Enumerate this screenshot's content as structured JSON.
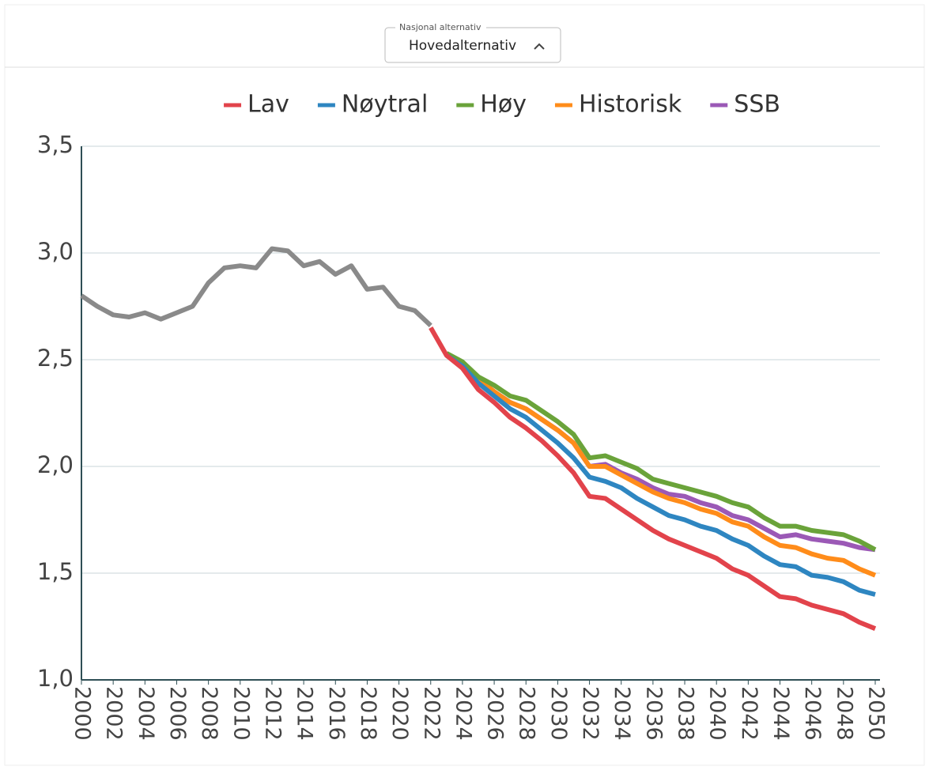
{
  "ui": {
    "dropdown_label": "Nasjonal alternativ",
    "dropdown_value": "Hovedalternativ"
  },
  "chart_data": {
    "type": "line",
    "x": [
      2000,
      2001,
      2002,
      2003,
      2004,
      2005,
      2006,
      2007,
      2008,
      2009,
      2010,
      2011,
      2012,
      2013,
      2014,
      2015,
      2016,
      2017,
      2018,
      2019,
      2020,
      2021,
      2022,
      2023,
      2024,
      2025,
      2026,
      2027,
      2028,
      2029,
      2030,
      2031,
      2032,
      2033,
      2034,
      2035,
      2036,
      2037,
      2038,
      2039,
      2040,
      2041,
      2042,
      2043,
      2044,
      2045,
      2046,
      2047,
      2048,
      2049,
      2050
    ],
    "series": [
      {
        "color": "#8a8a8a",
        "values": [
          2.8,
          2.75,
          2.71,
          2.7,
          2.72,
          2.69,
          2.72,
          2.75,
          2.86,
          2.93,
          2.94,
          2.93,
          3.02,
          3.01,
          2.94,
          2.96,
          2.9,
          2.94,
          2.83,
          2.84,
          2.75,
          2.73,
          2.66,
          null,
          null,
          null,
          null,
          null,
          null,
          null,
          null,
          null,
          null,
          null,
          null,
          null,
          null,
          null,
          null,
          null,
          null,
          null,
          null,
          null,
          null,
          null,
          null,
          null,
          null,
          null,
          null
        ]
      },
      {
        "name": "Lav",
        "color": "#e2434b",
        "values": [
          null,
          null,
          null,
          null,
          null,
          null,
          null,
          null,
          null,
          null,
          null,
          null,
          null,
          null,
          null,
          null,
          null,
          null,
          null,
          null,
          null,
          null,
          2.65,
          2.52,
          2.46,
          2.36,
          2.3,
          2.23,
          2.18,
          2.12,
          2.05,
          1.97,
          1.86,
          1.85,
          1.8,
          1.75,
          1.7,
          1.66,
          1.63,
          1.6,
          1.57,
          1.52,
          1.49,
          1.44,
          1.39,
          1.38,
          1.35,
          1.33,
          1.31,
          1.27,
          1.24
        ]
      },
      {
        "name": "Nøytral",
        "color": "#2e86c1",
        "values": [
          null,
          null,
          null,
          null,
          null,
          null,
          null,
          null,
          null,
          null,
          null,
          null,
          null,
          null,
          null,
          null,
          null,
          null,
          null,
          null,
          null,
          null,
          null,
          2.52,
          2.47,
          2.39,
          2.33,
          2.27,
          2.23,
          2.17,
          2.11,
          2.04,
          1.95,
          1.93,
          1.9,
          1.85,
          1.81,
          1.77,
          1.75,
          1.72,
          1.7,
          1.66,
          1.63,
          1.58,
          1.54,
          1.53,
          1.49,
          1.48,
          1.46,
          1.42,
          1.4
        ]
      },
      {
        "name": "Høy",
        "color": "#6aa33a",
        "values": [
          null,
          null,
          null,
          null,
          null,
          null,
          null,
          null,
          null,
          null,
          null,
          null,
          null,
          null,
          null,
          null,
          null,
          null,
          null,
          null,
          null,
          null,
          null,
          2.53,
          2.49,
          2.42,
          2.38,
          2.33,
          2.31,
          2.26,
          2.21,
          2.15,
          2.04,
          2.05,
          2.02,
          1.99,
          1.94,
          1.92,
          1.9,
          1.88,
          1.86,
          1.83,
          1.81,
          1.76,
          1.72,
          1.72,
          1.7,
          1.69,
          1.68,
          1.65,
          1.61
        ]
      },
      {
        "name": "Historisk",
        "color": "#ff8c1a",
        "values": [
          null,
          null,
          null,
          null,
          null,
          null,
          null,
          null,
          null,
          null,
          null,
          null,
          null,
          null,
          null,
          null,
          null,
          null,
          null,
          null,
          null,
          null,
          null,
          2.52,
          2.48,
          2.41,
          2.35,
          2.3,
          2.27,
          2.22,
          2.17,
          2.11,
          2.0,
          2.0,
          1.96,
          1.92,
          1.88,
          1.85,
          1.83,
          1.8,
          1.78,
          1.74,
          1.72,
          1.67,
          1.63,
          1.62,
          1.59,
          1.57,
          1.56,
          1.52,
          1.49
        ]
      },
      {
        "name": "SSB",
        "color": "#9b59b6",
        "values": [
          null,
          null,
          null,
          null,
          null,
          null,
          null,
          null,
          null,
          null,
          null,
          null,
          null,
          null,
          null,
          null,
          null,
          null,
          null,
          null,
          null,
          null,
          null,
          2.52,
          2.48,
          2.41,
          2.35,
          2.3,
          2.27,
          2.22,
          2.17,
          2.11,
          2.0,
          2.01,
          1.97,
          1.94,
          1.9,
          1.87,
          1.86,
          1.83,
          1.81,
          1.77,
          1.75,
          1.71,
          1.67,
          1.68,
          1.66,
          1.65,
          1.64,
          1.62,
          1.61
        ]
      }
    ],
    "xlim": [
      2000,
      2050
    ],
    "xticks": [
      2000,
      2002,
      2004,
      2006,
      2008,
      2010,
      2012,
      2014,
      2016,
      2018,
      2020,
      2022,
      2024,
      2026,
      2028,
      2030,
      2032,
      2034,
      2036,
      2038,
      2040,
      2042,
      2044,
      2046,
      2048,
      2050
    ],
    "ylim": [
      1.0,
      3.5
    ],
    "yticks": [
      {
        "value": 1.0,
        "label": "1,0"
      },
      {
        "value": 1.5,
        "label": "1,5"
      },
      {
        "value": 2.0,
        "label": "2,0"
      },
      {
        "value": 2.5,
        "label": "2,5"
      },
      {
        "value": 3.0,
        "label": "3,0"
      },
      {
        "value": 3.5,
        "label": "3,5"
      }
    ],
    "grid": true,
    "legend": "top"
  }
}
